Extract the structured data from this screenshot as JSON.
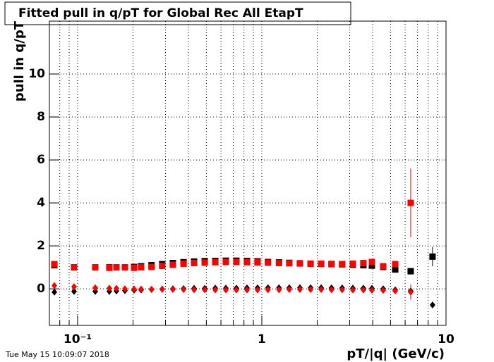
{
  "chart_data": {
    "type": "scatter",
    "title": "Fitted pull in q/pT for Global Rec All EtapT",
    "x_label": "pT/|q| (GeV/c)",
    "y_label": "pull in q/pT",
    "timestamp": "Tue May 15 10:09:07 2018",
    "xlog": true,
    "grid": true,
    "xlim": [
      0.0703,
      10
    ],
    "ylim": [
      -1.7,
      12.46
    ],
    "xticks": [
      {
        "value": 0.1,
        "label": "10⁻¹"
      },
      1,
      10
    ],
    "xminorticks": [
      0.08,
      0.09,
      0.2,
      0.3,
      0.4,
      0.5,
      0.6,
      0.7,
      0.8,
      0.9,
      2,
      3,
      4,
      5,
      6,
      7,
      8,
      9
    ],
    "yticks": [
      0,
      2,
      4,
      6,
      8,
      10
    ],
    "x": [
      0.0748,
      0.0957,
      0.1247,
      0.1487,
      0.1625,
      0.1807,
      0.2027,
      0.2213,
      0.252,
      0.288,
      0.329,
      0.376,
      0.429,
      0.49,
      0.559,
      0.638,
      0.728,
      0.831,
      0.948,
      1.08,
      1.24,
      1.41,
      1.61,
      1.84,
      2.1,
      2.39,
      2.73,
      3.12,
      3.56,
      3.96,
      4.56,
      5.3,
      6.43,
      8.45
    ],
    "series": [
      {
        "marker": "square",
        "color": "#000000",
        "values": [
          1.1,
          1.0,
          1.0,
          1.0,
          1.0,
          1.0,
          1.02,
          1.05,
          1.1,
          1.15,
          1.2,
          1.24,
          1.27,
          1.29,
          1.3,
          1.31,
          1.31,
          1.3,
          1.28,
          1.25,
          1.23,
          1.21,
          1.19,
          1.17,
          1.16,
          1.15,
          1.14,
          1.12,
          1.1,
          1.08,
          1.02,
          0.9,
          0.82,
          1.5
        ],
        "errors": [
          null,
          null,
          null,
          null,
          null,
          null,
          null,
          null,
          null,
          null,
          null,
          null,
          null,
          null,
          null,
          null,
          null,
          null,
          null,
          null,
          null,
          null,
          null,
          null,
          null,
          null,
          null,
          null,
          null,
          null,
          null,
          null,
          0.15,
          0.45
        ]
      },
      {
        "marker": "square",
        "color": "#ff0000",
        "values": [
          1.15,
          1.0,
          1.0,
          0.98,
          1.0,
          1.0,
          0.98,
          1.0,
          1.02,
          1.07,
          1.12,
          1.17,
          1.2,
          1.22,
          1.24,
          1.25,
          1.25,
          1.24,
          1.23,
          1.22,
          1.2,
          1.19,
          1.18,
          1.17,
          1.17,
          1.16,
          1.15,
          1.17,
          1.2,
          1.25,
          1.05,
          1.15,
          4.0,
          null
        ],
        "errors": [
          null,
          null,
          null,
          null,
          null,
          null,
          null,
          null,
          null,
          null,
          null,
          null,
          null,
          null,
          null,
          null,
          null,
          null,
          null,
          null,
          null,
          null,
          null,
          null,
          null,
          null,
          null,
          null,
          null,
          null,
          null,
          null,
          1.6,
          null
        ]
      },
      {
        "marker": "diamond",
        "color": "#000000",
        "values": [
          -0.15,
          -0.12,
          -0.12,
          -0.12,
          -0.1,
          -0.08,
          -0.06,
          -0.05,
          -0.03,
          -0.01,
          0,
          0.01,
          0.02,
          0.02,
          0.03,
          0.03,
          0.03,
          0.04,
          0.04,
          0.05,
          0.05,
          0.05,
          0.05,
          0.05,
          0.05,
          0.04,
          0.04,
          0.03,
          0.03,
          0.02,
          0.0,
          -0.05,
          -0.1,
          -0.75
        ],
        "errors": [
          null,
          null,
          null,
          null,
          null,
          null,
          null,
          null,
          null,
          null,
          null,
          null,
          null,
          null,
          null,
          null,
          null,
          null,
          null,
          null,
          null,
          null,
          null,
          null,
          null,
          null,
          null,
          null,
          null,
          null,
          null,
          null,
          null,
          0.1
        ]
      },
      {
        "marker": "diamond",
        "color": "#ff0000",
        "values": [
          0.15,
          0.1,
          0.05,
          0.03,
          0.02,
          0.0,
          -0.01,
          -0.01,
          -0.02,
          -0.02,
          -0.03,
          -0.03,
          -0.04,
          -0.04,
          -0.05,
          -0.05,
          -0.05,
          -0.05,
          -0.05,
          -0.04,
          -0.04,
          -0.03,
          -0.03,
          -0.03,
          -0.03,
          -0.04,
          -0.04,
          -0.05,
          -0.05,
          -0.06,
          -0.07,
          -0.1,
          -0.15,
          null
        ],
        "errors": [
          null,
          null,
          null,
          null,
          null,
          null,
          null,
          null,
          null,
          null,
          null,
          null,
          null,
          null,
          null,
          null,
          null,
          null,
          null,
          null,
          null,
          null,
          null,
          null,
          null,
          null,
          null,
          null,
          null,
          null,
          null,
          null,
          0.35,
          null
        ]
      }
    ]
  }
}
